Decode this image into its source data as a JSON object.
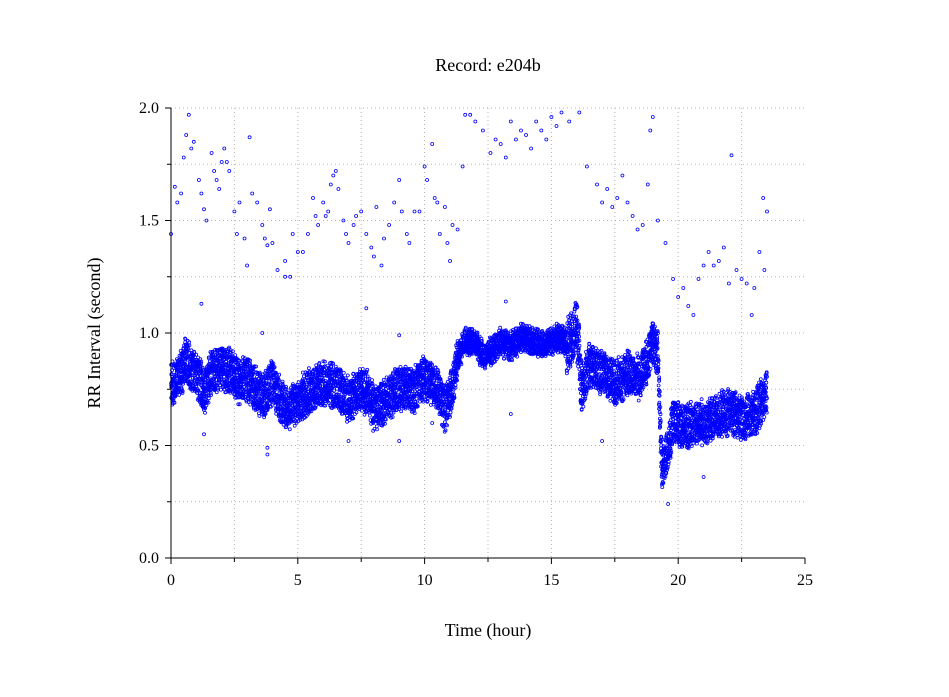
{
  "chart_data": {
    "type": "scatter",
    "title": "Record:  e204b",
    "xlabel": "Time (hour)",
    "ylabel": "RR Interval (second)",
    "xlim": [
      0,
      25
    ],
    "ylim": [
      0,
      2
    ],
    "x_ticks": [
      0,
      5,
      10,
      15,
      20,
      25
    ],
    "x_tick_labels": [
      "0",
      "5",
      "10",
      "15",
      "20",
      "25"
    ],
    "y_ticks": [
      0,
      0.5,
      1,
      1.5,
      2
    ],
    "y_tick_labels": [
      "0.0",
      "0.5",
      "1.0",
      "1.5",
      "2.0"
    ],
    "grid": true,
    "series_color": "#0000ff",
    "baseline": [
      [
        0,
        0.78
      ],
      [
        0.3,
        0.8
      ],
      [
        0.6,
        0.88
      ],
      [
        0.8,
        0.84
      ],
      [
        1.0,
        0.82
      ],
      [
        1.3,
        0.74
      ],
      [
        1.6,
        0.83
      ],
      [
        2.0,
        0.85
      ],
      [
        2.4,
        0.82
      ],
      [
        2.7,
        0.78
      ],
      [
        3.0,
        0.8
      ],
      [
        3.3,
        0.76
      ],
      [
        3.6,
        0.72
      ],
      [
        4.0,
        0.78
      ],
      [
        4.3,
        0.7
      ],
      [
        4.6,
        0.66
      ],
      [
        5.0,
        0.7
      ],
      [
        5.5,
        0.74
      ],
      [
        6.0,
        0.78
      ],
      [
        6.5,
        0.76
      ],
      [
        7.0,
        0.7
      ],
      [
        7.3,
        0.74
      ],
      [
        7.7,
        0.74
      ],
      [
        8.0,
        0.66
      ],
      [
        8.5,
        0.7
      ],
      [
        9.0,
        0.76
      ],
      [
        9.5,
        0.74
      ],
      [
        10.0,
        0.8
      ],
      [
        10.5,
        0.76
      ],
      [
        10.8,
        0.66
      ],
      [
        11.0,
        0.72
      ],
      [
        11.3,
        0.88
      ],
      [
        11.6,
        0.97
      ],
      [
        12.0,
        0.96
      ],
      [
        12.3,
        0.9
      ],
      [
        12.6,
        0.92
      ],
      [
        13.0,
        0.96
      ],
      [
        13.4,
        0.94
      ],
      [
        13.8,
        0.98
      ],
      [
        14.3,
        0.96
      ],
      [
        14.8,
        0.95
      ],
      [
        15.3,
        0.98
      ],
      [
        15.7,
        0.95
      ],
      [
        16.0,
        1.02
      ],
      [
        16.2,
        0.75
      ],
      [
        16.5,
        0.86
      ],
      [
        17.0,
        0.82
      ],
      [
        17.5,
        0.78
      ],
      [
        18.0,
        0.82
      ],
      [
        18.5,
        0.8
      ],
      [
        18.8,
        0.88
      ],
      [
        19.0,
        0.96
      ],
      [
        19.2,
        0.9
      ],
      [
        19.35,
        0.4
      ],
      [
        19.6,
        0.48
      ],
      [
        19.8,
        0.62
      ],
      [
        20.2,
        0.58
      ],
      [
        20.8,
        0.6
      ],
      [
        21.4,
        0.62
      ],
      [
        22.0,
        0.65
      ],
      [
        22.6,
        0.62
      ],
      [
        23.0,
        0.64
      ],
      [
        23.5,
        0.74
      ]
    ],
    "outliers": [
      [
        0.0,
        1.44
      ],
      [
        0.15,
        1.65
      ],
      [
        0.25,
        1.58
      ],
      [
        0.4,
        1.62
      ],
      [
        0.5,
        1.78
      ],
      [
        0.6,
        1.88
      ],
      [
        0.7,
        1.97
      ],
      [
        0.8,
        1.82
      ],
      [
        0.9,
        1.85
      ],
      [
        1.1,
        1.68
      ],
      [
        1.2,
        1.62
      ],
      [
        1.3,
        1.55
      ],
      [
        1.4,
        1.5
      ],
      [
        1.6,
        1.8
      ],
      [
        1.7,
        1.72
      ],
      [
        1.8,
        1.68
      ],
      [
        1.9,
        1.64
      ],
      [
        2.0,
        1.76
      ],
      [
        2.1,
        1.82
      ],
      [
        2.2,
        1.76
      ],
      [
        2.3,
        1.72
      ],
      [
        2.5,
        1.54
      ],
      [
        2.6,
        1.44
      ],
      [
        2.7,
        1.58
      ],
      [
        2.9,
        1.42
      ],
      [
        3.0,
        1.3
      ],
      [
        3.1,
        1.87
      ],
      [
        3.2,
        1.62
      ],
      [
        3.4,
        1.58
      ],
      [
        3.6,
        1.48
      ],
      [
        3.7,
        1.42
      ],
      [
        3.8,
        1.39
      ],
      [
        3.9,
        1.55
      ],
      [
        4.0,
        1.4
      ],
      [
        4.2,
        1.28
      ],
      [
        4.5,
        1.32
      ],
      [
        4.5,
        1.25
      ],
      [
        4.7,
        1.25
      ],
      [
        4.8,
        1.44
      ],
      [
        5.0,
        1.36
      ],
      [
        5.2,
        1.36
      ],
      [
        5.4,
        1.44
      ],
      [
        5.6,
        1.6
      ],
      [
        5.7,
        1.52
      ],
      [
        5.8,
        1.48
      ],
      [
        6.0,
        1.58
      ],
      [
        6.1,
        1.52
      ],
      [
        6.2,
        1.54
      ],
      [
        6.3,
        1.66
      ],
      [
        6.4,
        1.7
      ],
      [
        6.5,
        1.72
      ],
      [
        6.6,
        1.64
      ],
      [
        6.8,
        1.5
      ],
      [
        6.9,
        1.44
      ],
      [
        7.0,
        1.4
      ],
      [
        7.2,
        1.48
      ],
      [
        7.3,
        1.52
      ],
      [
        7.5,
        1.54
      ],
      [
        7.7,
        1.44
      ],
      [
        7.9,
        1.38
      ],
      [
        8.0,
        1.34
      ],
      [
        8.1,
        1.56
      ],
      [
        8.3,
        1.3
      ],
      [
        8.4,
        1.42
      ],
      [
        8.6,
        1.48
      ],
      [
        8.8,
        1.58
      ],
      [
        9.0,
        1.68
      ],
      [
        9.1,
        1.54
      ],
      [
        9.3,
        1.44
      ],
      [
        9.4,
        1.4
      ],
      [
        9.6,
        1.54
      ],
      [
        9.8,
        1.54
      ],
      [
        10.0,
        1.74
      ],
      [
        10.1,
        1.68
      ],
      [
        10.3,
        1.84
      ],
      [
        10.4,
        1.6
      ],
      [
        10.5,
        1.58
      ],
      [
        10.6,
        1.44
      ],
      [
        10.8,
        1.56
      ],
      [
        10.9,
        1.4
      ],
      [
        11.0,
        1.32
      ],
      [
        11.1,
        1.48
      ],
      [
        11.3,
        1.46
      ],
      [
        11.5,
        1.74
      ],
      [
        11.6,
        1.97
      ],
      [
        11.8,
        1.97
      ],
      [
        12.0,
        1.94
      ],
      [
        12.3,
        1.9
      ],
      [
        12.6,
        1.8
      ],
      [
        12.8,
        1.86
      ],
      [
        13.0,
        1.84
      ],
      [
        13.2,
        1.78
      ],
      [
        13.4,
        1.94
      ],
      [
        13.6,
        1.86
      ],
      [
        13.8,
        1.9
      ],
      [
        14.0,
        1.88
      ],
      [
        14.2,
        1.82
      ],
      [
        14.4,
        1.94
      ],
      [
        14.6,
        1.9
      ],
      [
        14.8,
        1.86
      ],
      [
        15.0,
        1.96
      ],
      [
        15.2,
        1.92
      ],
      [
        15.4,
        1.98
      ],
      [
        15.7,
        1.94
      ],
      [
        16.1,
        1.98
      ],
      [
        16.4,
        1.74
      ],
      [
        16.8,
        1.66
      ],
      [
        17.0,
        1.58
      ],
      [
        17.2,
        1.64
      ],
      [
        17.4,
        1.56
      ],
      [
        17.6,
        1.6
      ],
      [
        17.8,
        1.7
      ],
      [
        18.0,
        1.58
      ],
      [
        18.2,
        1.52
      ],
      [
        18.4,
        1.46
      ],
      [
        18.6,
        1.48
      ],
      [
        18.8,
        1.66
      ],
      [
        18.9,
        1.9
      ],
      [
        19.0,
        1.96
      ],
      [
        19.2,
        1.5
      ],
      [
        19.5,
        1.4
      ],
      [
        19.8,
        1.24
      ],
      [
        20.0,
        1.16
      ],
      [
        20.2,
        1.2
      ],
      [
        20.4,
        1.12
      ],
      [
        20.6,
        1.08
      ],
      [
        20.8,
        1.24
      ],
      [
        21.0,
        1.3
      ],
      [
        21.2,
        1.36
      ],
      [
        21.4,
        1.3
      ],
      [
        21.6,
        1.32
      ],
      [
        21.8,
        1.38
      ],
      [
        22.0,
        1.22
      ],
      [
        22.1,
        1.79
      ],
      [
        22.3,
        1.28
      ],
      [
        22.5,
        1.24
      ],
      [
        22.7,
        1.22
      ],
      [
        22.9,
        1.08
      ],
      [
        23.0,
        1.2
      ],
      [
        23.2,
        1.36
      ],
      [
        23.35,
        1.6
      ],
      [
        23.5,
        1.54
      ],
      [
        23.4,
        1.28
      ],
      [
        1.2,
        1.13
      ],
      [
        1.3,
        0.55
      ],
      [
        3.6,
        1.0
      ],
      [
        3.8,
        0.46
      ],
      [
        3.8,
        0.49
      ],
      [
        7.0,
        0.52
      ],
      [
        9.0,
        0.52
      ],
      [
        7.7,
        1.11
      ],
      [
        9.0,
        0.99
      ],
      [
        13.4,
        0.64
      ],
      [
        13.2,
        1.14
      ],
      [
        17.0,
        0.52
      ],
      [
        21.0,
        0.36
      ],
      [
        19.6,
        0.24
      ],
      [
        10.3,
        0.6
      ]
    ]
  }
}
